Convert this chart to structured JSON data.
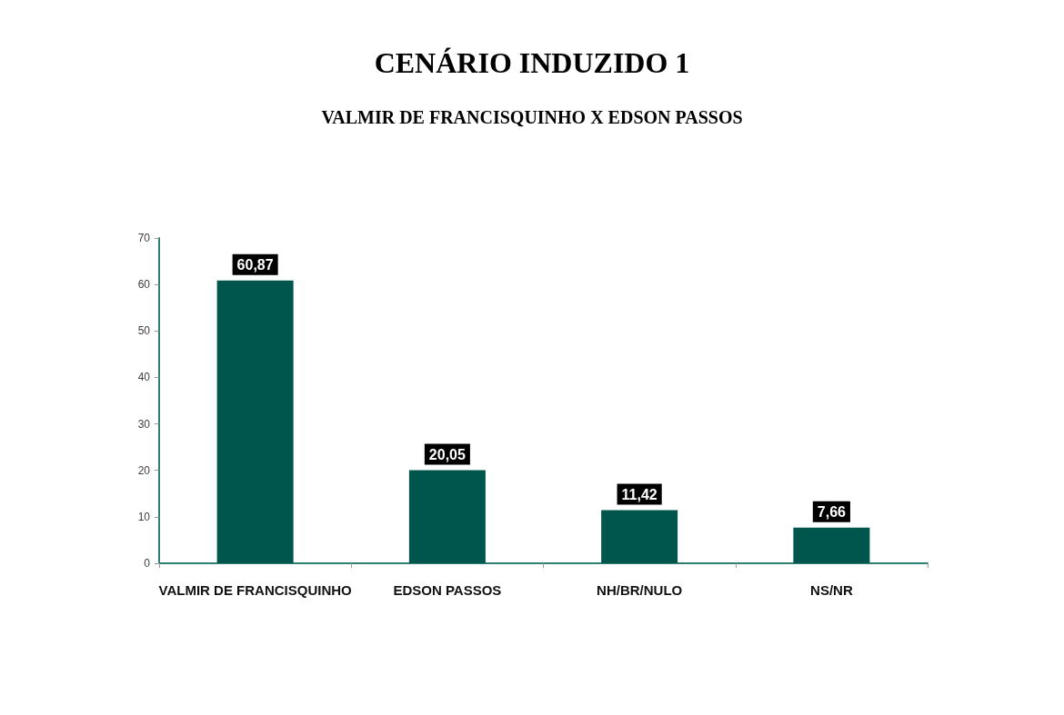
{
  "chart_data": {
    "type": "bar",
    "title": "CENÁRIO INDUZIDO 1",
    "subtitle": "VALMIR DE FRANCISQUINHO X EDSON PASSOS",
    "categories": [
      "VALMIR DE FRANCISQUINHO",
      "EDSON PASSOS",
      "NH/BR/NULO",
      "NS/NR"
    ],
    "values": [
      60.87,
      20.05,
      11.42,
      7.66
    ],
    "color": "#00564d",
    "value_labels": [
      "60,87",
      "20,05",
      "11,42",
      "7,66"
    ],
    "ylim": [
      0,
      70
    ],
    "yticks": [
      0,
      10,
      20,
      30,
      40,
      50,
      60,
      70
    ],
    "grid": false
  }
}
